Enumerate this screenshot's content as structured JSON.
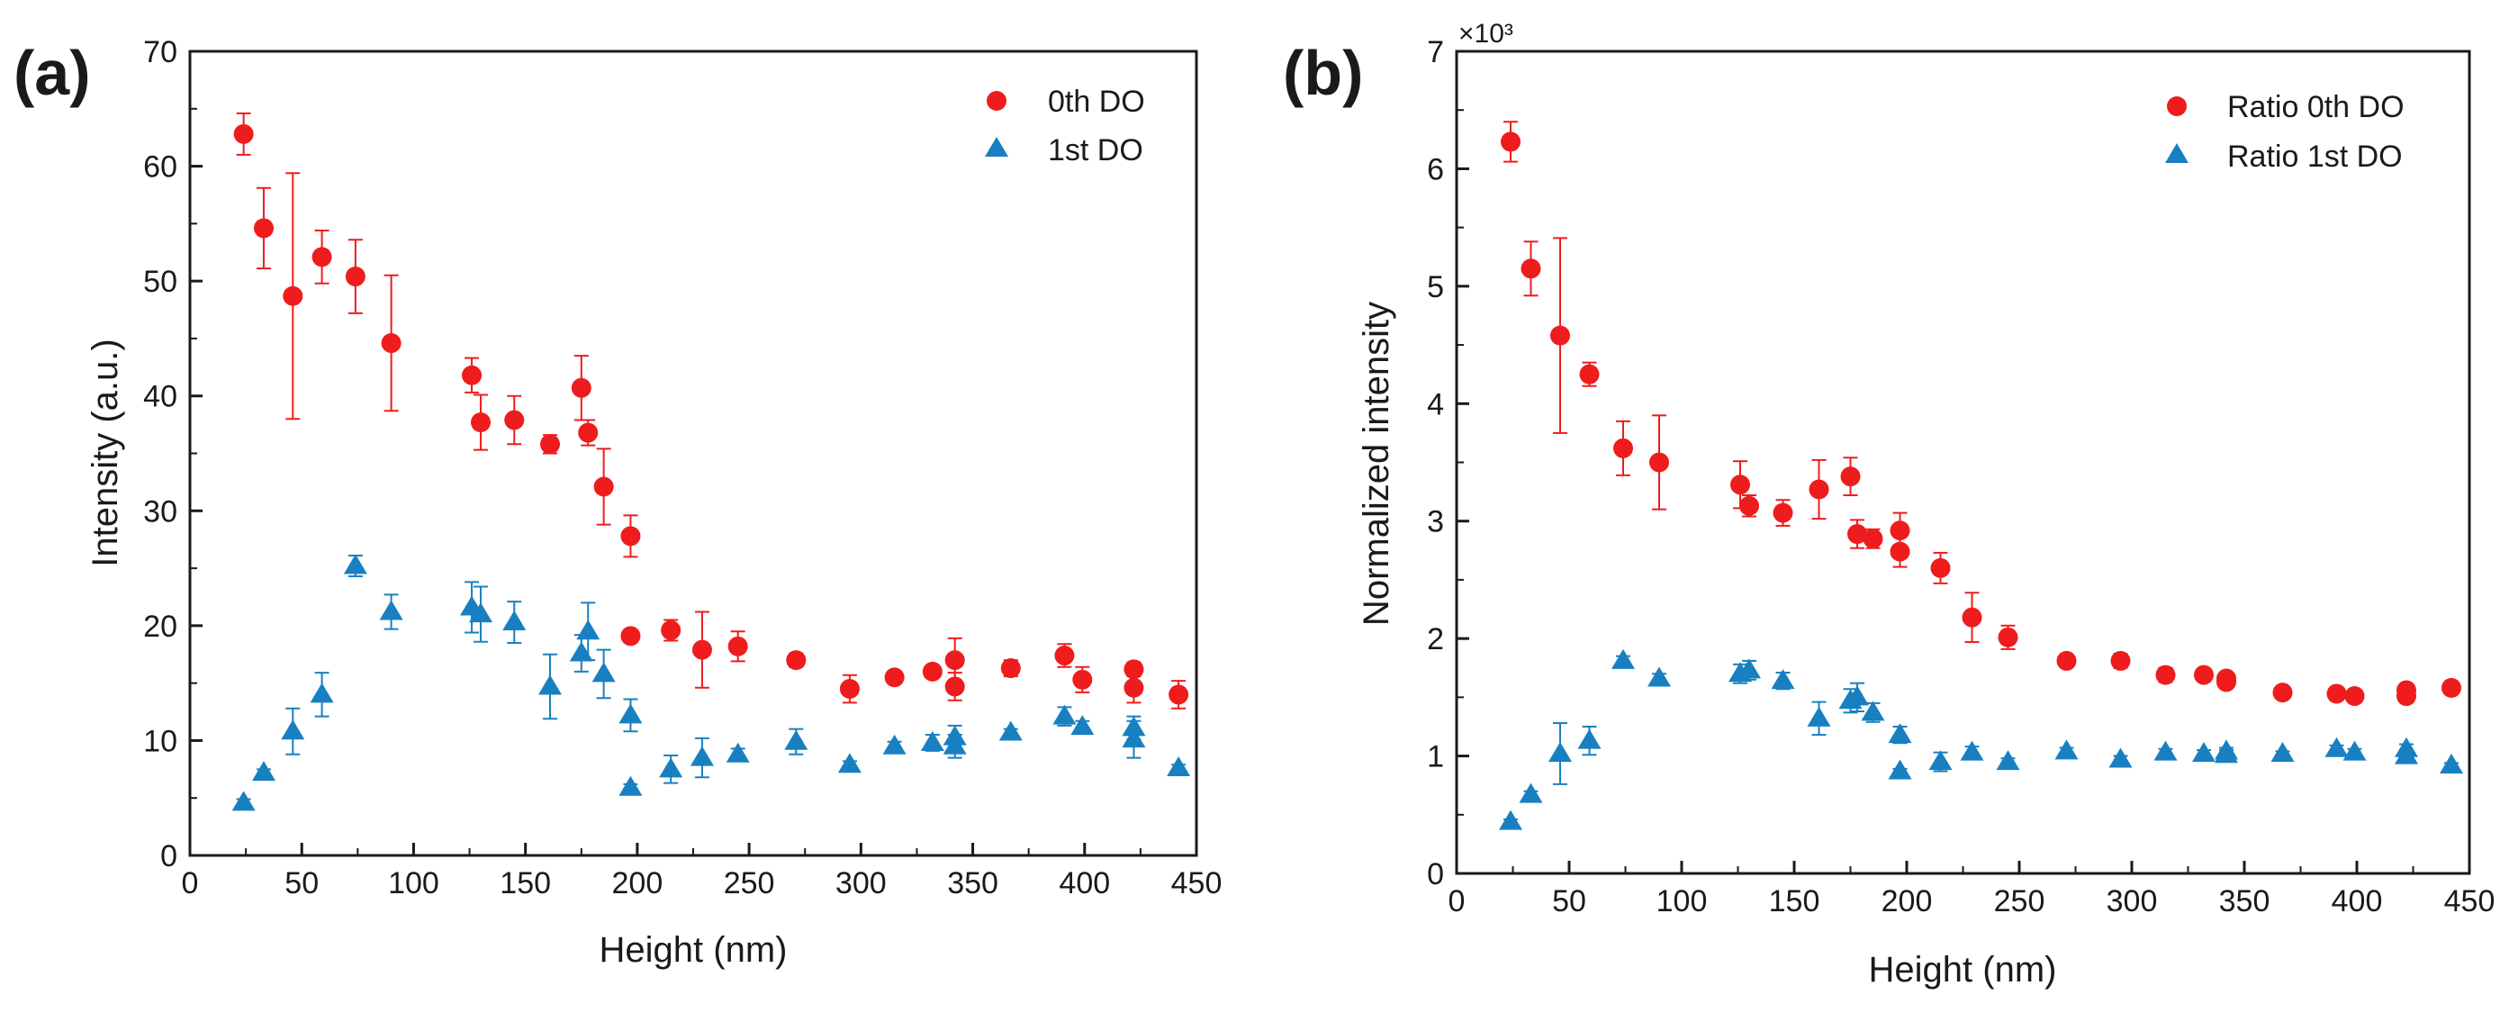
{
  "figure": {
    "colors": {
      "zeroth": "#ee1c1c",
      "first": "#1880c0",
      "axis": "#1a1a1a"
    }
  },
  "chart_data": [
    {
      "type": "scatter",
      "panel_label": "(a)",
      "title": "",
      "xlabel": "Height (nm)",
      "ylabel": "Intensity  (a.u.)",
      "xlim": [
        0,
        450
      ],
      "ylim": [
        0,
        70
      ],
      "xticks": [
        0,
        50,
        100,
        150,
        200,
        250,
        300,
        350,
        400,
        450
      ],
      "yticks": [
        0,
        10,
        20,
        30,
        40,
        50,
        60,
        70
      ],
      "xtick_labels": [
        "0",
        "50",
        "100",
        "150",
        "200",
        "250",
        "300",
        "350",
        "400",
        "450"
      ],
      "ytick_labels": [
        "0",
        "10",
        "20",
        "30",
        "40",
        "50",
        "60",
        "70"
      ],
      "legend_position": "top-right",
      "series": [
        {
          "name": "0th DO",
          "marker": "circle",
          "color": "#ee1c1c",
          "x": [
            24,
            33,
            46,
            59,
            74,
            90,
            126,
            130,
            145,
            161,
            175,
            178,
            185,
            197,
            197,
            215,
            229,
            245,
            271,
            295,
            315,
            332,
            342,
            342,
            367,
            391,
            399,
            422,
            422,
            442
          ],
          "y": [
            62.8,
            54.6,
            48.7,
            52.1,
            50.4,
            44.6,
            41.8,
            37.7,
            37.9,
            35.8,
            40.7,
            36.8,
            32.1,
            27.8,
            19.1,
            19.6,
            17.9,
            18.2,
            17.0,
            14.5,
            15.5,
            16.0,
            17.0,
            14.7,
            16.3,
            17.4,
            15.3,
            16.2,
            14.6,
            14.0
          ],
          "err": [
            1.8,
            3.5,
            10.7,
            2.3,
            3.2,
            5.9,
            1.5,
            2.4,
            2.1,
            0.8,
            2.8,
            1.1,
            3.3,
            1.8,
            0.5,
            0.9,
            3.3,
            1.3,
            0.6,
            1.2,
            0.4,
            0.5,
            1.9,
            1.2,
            0.7,
            1.0,
            1.1,
            0.6,
            1.3,
            1.2
          ]
        },
        {
          "name": "1st DO",
          "marker": "triangle",
          "color": "#1880c0",
          "x": [
            24,
            33,
            46,
            59,
            74,
            90,
            126,
            130,
            145,
            161,
            175,
            178,
            185,
            197,
            197,
            215,
            229,
            245,
            271,
            295,
            315,
            332,
            342,
            342,
            367,
            391,
            399,
            422,
            422,
            442
          ],
          "y": [
            4.6,
            7.2,
            10.8,
            14.0,
            25.2,
            21.2,
            21.6,
            21.0,
            20.3,
            14.7,
            17.6,
            19.5,
            15.8,
            12.2,
            5.9,
            7.5,
            8.5,
            8.8,
            9.9,
            7.9,
            9.5,
            9.8,
            10.3,
            9.5,
            10.7,
            12.1,
            11.2,
            11.1,
            10.1,
            7.6
          ],
          "err": [
            0.3,
            0.3,
            2.0,
            1.9,
            0.9,
            1.5,
            2.2,
            2.4,
            1.8,
            2.8,
            1.6,
            2.5,
            2.1,
            1.4,
            0.3,
            1.2,
            1.7,
            0.5,
            1.1,
            0.3,
            0.4,
            0.7,
            1.0,
            1.0,
            0.3,
            0.8,
            0.5,
            1.0,
            1.6,
            0.3
          ]
        }
      ]
    },
    {
      "type": "scatter",
      "panel_label": "(b)",
      "title": "",
      "xlabel": "Height (nm)",
      "ylabel": "Normalized intensity",
      "scale_note": "×10³",
      "xlim": [
        0,
        450
      ],
      "ylim": [
        0,
        7
      ],
      "xticks": [
        0,
        50,
        100,
        150,
        200,
        250,
        300,
        350,
        400,
        450
      ],
      "yticks": [
        0,
        1,
        2,
        3,
        4,
        5,
        6,
        7
      ],
      "xtick_labels": [
        "0",
        "50",
        "100",
        "150",
        "200",
        "250",
        "300",
        "350",
        "400",
        "450"
      ],
      "ytick_labels": [
        "0",
        "1",
        "2",
        "3",
        "4",
        "5",
        "6",
        "7"
      ],
      "legend_position": "top-right",
      "series": [
        {
          "name": "Ratio 0th DO",
          "marker": "circle",
          "color": "#ee1c1c",
          "x": [
            24,
            33,
            46,
            59,
            74,
            90,
            126,
            130,
            145,
            161,
            175,
            178,
            185,
            197,
            197,
            215,
            229,
            245,
            271,
            295,
            315,
            332,
            342,
            342,
            367,
            391,
            399,
            422,
            422,
            442
          ],
          "y": [
            6.23,
            5.15,
            4.58,
            4.25,
            3.62,
            3.5,
            3.31,
            3.13,
            3.07,
            3.27,
            3.38,
            2.89,
            2.85,
            2.92,
            2.74,
            2.6,
            2.18,
            2.01,
            1.81,
            1.81,
            1.69,
            1.69,
            1.66,
            1.63,
            1.54,
            1.53,
            1.51,
            1.56,
            1.51,
            1.58
          ],
          "err": [
            0.17,
            0.23,
            0.83,
            0.1,
            0.23,
            0.4,
            0.2,
            0.09,
            0.11,
            0.25,
            0.16,
            0.12,
            0.08,
            0.15,
            0.13,
            0.13,
            0.21,
            0.1,
            0.04,
            0.06,
            0.06,
            0.05,
            0.05,
            0.04,
            0.03,
            0.03,
            0.03,
            0.04,
            0.05,
            0.04
          ]
        },
        {
          "name": "Ratio 1st DO",
          "marker": "triangle",
          "color": "#1880c0",
          "x": [
            24,
            33,
            46,
            59,
            74,
            90,
            126,
            130,
            145,
            161,
            175,
            178,
            185,
            197,
            197,
            215,
            229,
            245,
            271,
            295,
            315,
            332,
            342,
            342,
            367,
            391,
            399,
            422,
            422,
            442
          ],
          "y": [
            0.44,
            0.67,
            1.02,
            1.13,
            1.81,
            1.66,
            1.7,
            1.73,
            1.64,
            1.32,
            1.47,
            1.5,
            1.37,
            1.18,
            0.87,
            0.95,
            1.03,
            0.95,
            1.04,
            0.97,
            1.03,
            1.02,
            1.04,
            1.01,
            1.02,
            1.06,
            1.03,
            1.06,
            1.0,
            0.92
          ],
          "err": [
            0.02,
            0.03,
            0.26,
            0.12,
            0.04,
            0.04,
            0.08,
            0.08,
            0.07,
            0.14,
            0.1,
            0.12,
            0.08,
            0.07,
            0.02,
            0.08,
            0.05,
            0.03,
            0.03,
            0.03,
            0.03,
            0.03,
            0.03,
            0.04,
            0.02,
            0.03,
            0.03,
            0.04,
            0.05,
            0.02
          ]
        }
      ]
    }
  ]
}
